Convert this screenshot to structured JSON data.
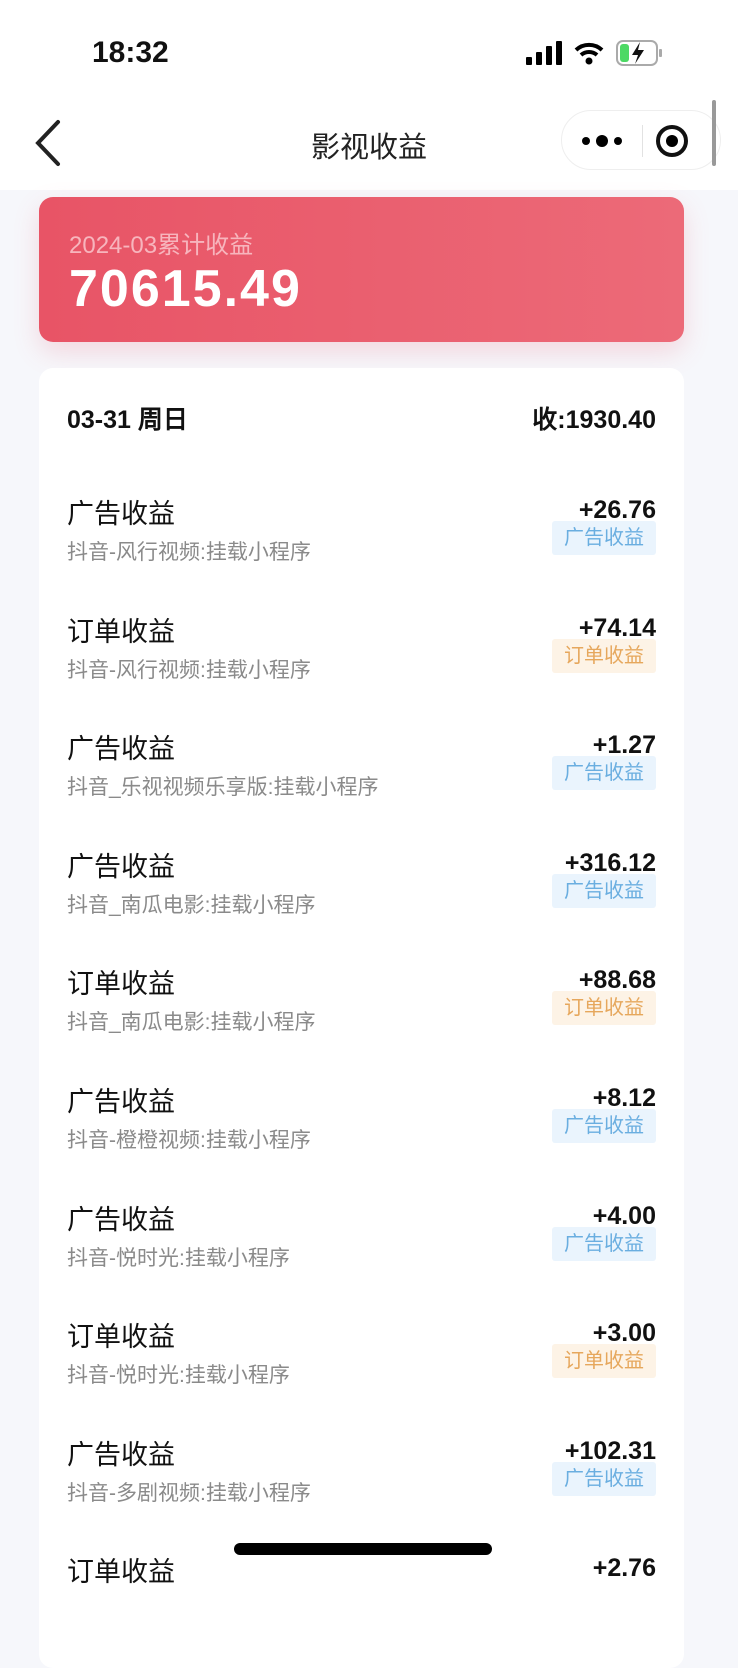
{
  "status_bar": {
    "time": "18:32",
    "icons": [
      "signal-icon",
      "wifi-icon",
      "battery-charging-icon"
    ],
    "battery_color": "#4cd964"
  },
  "nav": {
    "title": "影视收益",
    "back_icon": "chevron-left-icon",
    "more_icon": "more-dots-icon",
    "close_icon": "target-circle-icon"
  },
  "summary": {
    "label": "2024-03累计收益",
    "amount": "70615.49",
    "color": "#e85466"
  },
  "day": {
    "date": "03-31 周日",
    "total": "收:1930.40"
  },
  "items": [
    {
      "title": "广告收益",
      "source": "抖音-风行视频:挂载小程序",
      "amount": "+26.76",
      "tag": "广告收益",
      "type": "ad"
    },
    {
      "title": "订单收益",
      "source": "抖音-风行视频:挂载小程序",
      "amount": "+74.14",
      "tag": "订单收益",
      "type": "order"
    },
    {
      "title": "广告收益",
      "source": "抖音_乐视视频乐享版:挂载小程序",
      "amount": "+1.27",
      "tag": "广告收益",
      "type": "ad"
    },
    {
      "title": "广告收益",
      "source": "抖音_南瓜电影:挂载小程序",
      "amount": "+316.12",
      "tag": "广告收益",
      "type": "ad"
    },
    {
      "title": "订单收益",
      "source": "抖音_南瓜电影:挂载小程序",
      "amount": "+88.68",
      "tag": "订单收益",
      "type": "order"
    },
    {
      "title": "广告收益",
      "source": "抖音-橙橙视频:挂载小程序",
      "amount": "+8.12",
      "tag": "广告收益",
      "type": "ad"
    },
    {
      "title": "广告收益",
      "source": "抖音-悦时光:挂载小程序",
      "amount": "+4.00",
      "tag": "广告收益",
      "type": "ad"
    },
    {
      "title": "订单收益",
      "source": "抖音-悦时光:挂载小程序",
      "amount": "+3.00",
      "tag": "订单收益",
      "type": "order"
    },
    {
      "title": "广告收益",
      "source": "抖音-多剧视频:挂载小程序",
      "amount": "+102.31",
      "tag": "广告收益",
      "type": "ad"
    },
    {
      "title": "订单收益",
      "source": "",
      "amount": "+2.76",
      "tag": "",
      "type": "order"
    }
  ]
}
